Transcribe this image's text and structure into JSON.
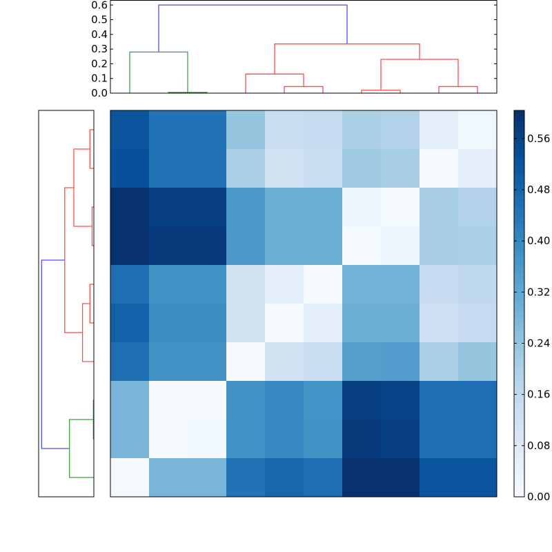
{
  "chart_data": [
    {
      "type": "heatmap",
      "title": "",
      "xlabel": "",
      "ylabel": "",
      "colormap": "Blues",
      "vmin": 0.0,
      "vmax": 0.604,
      "values": [
        [
          0.52,
          0.45,
          0.45,
          0.24,
          0.14,
          0.15,
          0.2,
          0.19,
          0.06,
          0.02
        ],
        [
          0.53,
          0.45,
          0.45,
          0.2,
          0.12,
          0.14,
          0.22,
          0.21,
          0.01,
          0.05
        ],
        [
          0.6,
          0.57,
          0.57,
          0.36,
          0.3,
          0.3,
          0.03,
          0.01,
          0.21,
          0.19
        ],
        [
          0.6,
          0.58,
          0.58,
          0.36,
          0.3,
          0.3,
          0.01,
          0.03,
          0.21,
          0.2
        ],
        [
          0.46,
          0.38,
          0.38,
          0.12,
          0.05,
          0.01,
          0.29,
          0.29,
          0.15,
          0.16
        ],
        [
          0.49,
          0.39,
          0.39,
          0.12,
          0.01,
          0.06,
          0.3,
          0.3,
          0.13,
          0.15
        ],
        [
          0.46,
          0.38,
          0.38,
          0.01,
          0.12,
          0.14,
          0.34,
          0.35,
          0.2,
          0.24
        ],
        [
          0.28,
          0.01,
          0.01,
          0.38,
          0.4,
          0.37,
          0.57,
          0.56,
          0.46,
          0.46
        ],
        [
          0.28,
          0.01,
          0.02,
          0.38,
          0.4,
          0.38,
          0.58,
          0.57,
          0.46,
          0.46
        ],
        [
          0.01,
          0.28,
          0.28,
          0.45,
          0.48,
          0.46,
          0.6,
          0.6,
          0.52,
          0.52
        ]
      ],
      "colorbar": {
        "ticks": [
          "0.00",
          "0.08",
          "0.16",
          "0.24",
          "0.32",
          "0.40",
          "0.48",
          "0.56"
        ],
        "tick_values": [
          0.0,
          0.08,
          0.16,
          0.24,
          0.32,
          0.4,
          0.48,
          0.56
        ]
      }
    },
    {
      "type": "dendrogram",
      "orientation": "top",
      "ylim": [
        0,
        0.634
      ],
      "yticks": [
        "0.0",
        "0.1",
        "0.2",
        "0.3",
        "0.4",
        "0.5",
        "0.6"
      ],
      "ytick_values": [
        0,
        0.1,
        0.2,
        0.3,
        0.4,
        0.5,
        0.6
      ],
      "tree": {
        "h": 0.6,
        "c": "blue",
        "l": {
          "h": 0.28,
          "c": "green",
          "l": 0,
          "r": {
            "h": 0.005,
            "c": "green",
            "l": 1,
            "r": 2
          }
        },
        "r": {
          "h": 0.335,
          "c": "red",
          "l": {
            "h": 0.13,
            "c": "red",
            "l": 3,
            "r": {
              "h": 0.045,
              "c": "red",
              "l": 4,
              "r": 5
            }
          },
          "r": {
            "h": 0.23,
            "c": "red",
            "l": {
              "h": 0.02,
              "c": "red",
              "l": 6,
              "r": 7
            },
            "r": {
              "h": 0.045,
              "c": "red",
              "l": 8,
              "r": 9
            }
          }
        }
      }
    },
    {
      "type": "dendrogram",
      "orientation": "left",
      "xlim": [
        0.634,
        0
      ],
      "tree": {
        "h": 0.6,
        "c": "blue",
        "l": {
          "h": 0.335,
          "c": "red",
          "l": {
            "h": 0.23,
            "c": "red",
            "l": {
              "h": 0.045,
              "c": "red",
              "l": 0,
              "r": 1
            },
            "r": {
              "h": 0.02,
              "c": "red",
              "l": 2,
              "r": 3
            }
          },
          "r": {
            "h": 0.13,
            "c": "red",
            "l": {
              "h": 0.045,
              "c": "red",
              "l": 4,
              "r": 5
            },
            "r": 6
          }
        },
        "r": {
          "h": 0.28,
          "c": "green",
          "l": {
            "h": 0.005,
            "c": "green",
            "l": 7,
            "r": 8
          },
          "r": 9
        }
      }
    }
  ],
  "colors": {
    "blue": "#4a4aff",
    "red": "#ff4a4a",
    "green": "#3fa03f",
    "frame": "#000000"
  }
}
